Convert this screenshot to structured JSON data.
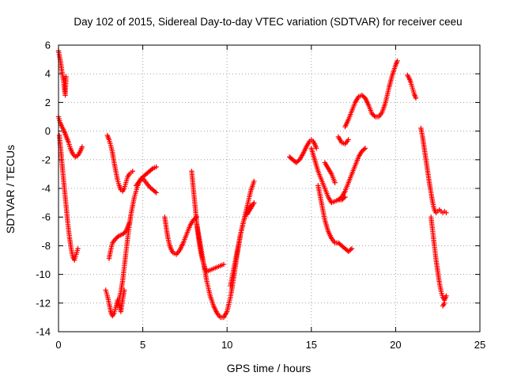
{
  "chart_data": {
    "type": "scatter",
    "title": "Day 102 of 2015, Sidereal Day-to-day VTEC variation (SDTVAR) for receiver ceeu",
    "xlabel": "GPS time / hours",
    "ylabel": "SDTVAR / TECUs",
    "xlim": [
      0,
      25
    ],
    "ylim": [
      -14,
      6
    ],
    "x_ticks": [
      0,
      5,
      10,
      15,
      20,
      25
    ],
    "y_ticks": [
      -14,
      -12,
      -10,
      -8,
      -6,
      -4,
      -2,
      0,
      2,
      4,
      6
    ],
    "grid": true,
    "legend": "none",
    "marker": "plus",
    "color": "#ff0000",
    "series": [
      {
        "x": [
          0.0,
          0.1,
          0.2,
          0.3,
          0.35,
          0.4,
          0.45
        ],
        "y": [
          5.6,
          5.0,
          4.2,
          3.5,
          2.9,
          2.5,
          3.8
        ]
      },
      {
        "x": [
          0.0,
          0.1,
          0.2,
          0.3,
          0.4,
          0.5,
          0.6,
          0.7,
          0.85,
          1.0,
          1.15,
          1.3,
          1.4
        ],
        "y": [
          1.0,
          0.6,
          0.3,
          0.1,
          -0.2,
          -0.5,
          -0.8,
          -1.2,
          -1.6,
          -1.8,
          -1.7,
          -1.4,
          -1.1
        ]
      },
      {
        "x": [
          0.05,
          0.15,
          0.25,
          0.35,
          0.45,
          0.55,
          0.65,
          0.75,
          0.85,
          0.95,
          1.05,
          1.15
        ],
        "y": [
          -0.3,
          -1.5,
          -2.8,
          -4.0,
          -5.2,
          -6.4,
          -7.4,
          -8.2,
          -8.8,
          -9.0,
          -8.6,
          -8.2
        ]
      },
      {
        "x": [
          2.9,
          3.0,
          3.1,
          3.2,
          3.3,
          3.4,
          3.5,
          3.6,
          3.7,
          3.8,
          3.9,
          4.0,
          4.1,
          4.2,
          4.3,
          4.4
        ],
        "y": [
          -0.3,
          -0.6,
          -1.0,
          -1.5,
          -2.2,
          -2.8,
          -3.4,
          -3.8,
          -4.1,
          -4.2,
          -4.0,
          -3.6,
          -3.2,
          -3.0,
          -2.9,
          -2.8
        ]
      },
      {
        "x": [
          2.8,
          2.9,
          3.0,
          3.1,
          3.2,
          3.3,
          3.4,
          3.5,
          3.6,
          3.7,
          3.8,
          3.9
        ],
        "y": [
          -11.1,
          -11.5,
          -12.0,
          -12.6,
          -12.9,
          -12.7,
          -12.3,
          -11.8,
          -12.2,
          -12.6,
          -11.8,
          -11.1
        ]
      },
      {
        "x": [
          3.0,
          3.1,
          3.2,
          3.4,
          3.6,
          3.8,
          4.0,
          4.1,
          4.2
        ],
        "y": [
          -8.9,
          -8.3,
          -7.8,
          -7.5,
          -7.3,
          -7.2,
          -7.0,
          -6.7,
          -6.4
        ]
      },
      {
        "x": [
          3.5,
          3.6,
          3.7,
          3.8,
          3.9,
          4.0,
          4.1,
          4.2,
          4.3,
          4.4,
          4.5,
          4.6,
          4.7,
          4.8,
          4.9,
          5.0,
          5.2,
          5.4,
          5.6,
          5.8
        ],
        "y": [
          -12.2,
          -11.7,
          -11.2,
          -10.5,
          -9.5,
          -8.5,
          -7.5,
          -6.6,
          -5.8,
          -5.2,
          -4.6,
          -4.2,
          -3.8,
          -3.5,
          -3.3,
          -3.2,
          -3.0,
          -2.8,
          -2.6,
          -2.5
        ]
      },
      {
        "x": [
          4.6,
          4.8,
          5.0,
          5.2,
          5.4,
          5.6,
          5.8
        ],
        "y": [
          -3.8,
          -3.5,
          -3.3,
          -3.6,
          -3.9,
          -4.1,
          -4.3
        ]
      },
      {
        "x": [
          6.3,
          6.4,
          6.5,
          6.6,
          6.7,
          6.8,
          7.0,
          7.2,
          7.4,
          7.6,
          7.8,
          8.0,
          8.2
        ],
        "y": [
          -6.0,
          -6.8,
          -7.5,
          -8.0,
          -8.3,
          -8.5,
          -8.6,
          -8.3,
          -7.8,
          -7.2,
          -6.6,
          -6.2,
          -6.0
        ]
      },
      {
        "x": [
          7.9,
          8.0,
          8.1,
          8.2,
          8.3,
          8.4,
          8.5,
          8.6,
          8.7,
          8.8,
          9.0,
          9.2,
          9.4,
          9.6,
          9.8
        ],
        "y": [
          -2.8,
          -4.0,
          -5.2,
          -6.4,
          -7.4,
          -8.2,
          -8.8,
          -9.2,
          -9.6,
          -9.8,
          -9.7,
          -9.6,
          -9.5,
          -9.4,
          -9.3
        ]
      },
      {
        "x": [
          8.2,
          8.4,
          8.6,
          8.8,
          9.0,
          9.2,
          9.4,
          9.6,
          9.8,
          10.0,
          10.2,
          10.4,
          10.6,
          10.8,
          11.0,
          11.2,
          11.4
        ],
        "y": [
          -6.5,
          -7.8,
          -9.2,
          -10.5,
          -11.5,
          -12.2,
          -12.7,
          -13.0,
          -13.0,
          -12.6,
          -11.6,
          -10.2,
          -8.6,
          -7.2,
          -6.2,
          -5.6,
          -5.2
        ]
      },
      {
        "x": [
          10.2,
          10.4,
          10.6,
          10.8,
          11.0,
          11.2,
          11.4,
          11.6
        ],
        "y": [
          -10.8,
          -9.6,
          -8.4,
          -7.2,
          -6.2,
          -5.2,
          -4.2,
          -3.5
        ]
      },
      {
        "x": [
          11.2,
          11.4,
          11.6
        ],
        "y": [
          -5.8,
          -5.4,
          -5.0
        ]
      },
      {
        "x": [
          13.7,
          13.9,
          14.1,
          14.3,
          14.5,
          14.7,
          14.9,
          15.0,
          15.1,
          15.2,
          15.3
        ],
        "y": [
          -1.8,
          -2.0,
          -2.2,
          -2.0,
          -1.6,
          -1.1,
          -0.7,
          -0.6,
          -0.7,
          -0.9,
          -1.2
        ]
      },
      {
        "x": [
          15.0,
          15.2,
          15.4,
          15.6,
          15.8,
          16.0,
          16.2,
          16.4,
          16.6,
          16.8,
          17.0
        ],
        "y": [
          -1.2,
          -2.0,
          -2.8,
          -3.4,
          -4.0,
          -4.6,
          -5.0,
          -4.9,
          -4.8,
          -4.8,
          -4.6
        ]
      },
      {
        "x": [
          15.4,
          15.6,
          15.8,
          16.0,
          16.2,
          16.4,
          16.6,
          16.8,
          17.0,
          17.2,
          17.4
        ],
        "y": [
          -3.8,
          -5.0,
          -6.2,
          -7.0,
          -7.5,
          -7.8,
          -7.8,
          -8.0,
          -8.2,
          -8.4,
          -8.2
        ]
      },
      {
        "x": [
          15.8,
          16.0,
          16.2,
          16.4
        ],
        "y": [
          -2.2,
          -2.6,
          -3.0,
          -3.6
        ]
      },
      {
        "x": [
          16.6,
          16.8,
          17.0,
          17.2,
          17.4,
          17.6,
          17.8,
          18.0,
          18.2
        ],
        "y": [
          -4.8,
          -4.6,
          -4.2,
          -3.6,
          -3.0,
          -2.4,
          -1.8,
          -1.4,
          -1.2
        ]
      },
      {
        "x": [
          16.6,
          16.8,
          17.0,
          17.2
        ],
        "y": [
          -0.4,
          -0.8,
          -0.9,
          -0.6
        ]
      },
      {
        "x": [
          17.0,
          17.2,
          17.4,
          17.6,
          17.8,
          18.0,
          18.2,
          18.4,
          18.6,
          18.8,
          19.0,
          19.2,
          19.4,
          19.6,
          19.8,
          20.0,
          20.1
        ],
        "y": [
          0.3,
          0.8,
          1.4,
          2.0,
          2.4,
          2.5,
          2.3,
          1.8,
          1.2,
          1.0,
          1.0,
          1.3,
          2.0,
          3.0,
          3.9,
          4.6,
          4.9
        ]
      },
      {
        "x": [
          20.7,
          20.8,
          20.9,
          21.0,
          21.1,
          21.2
        ],
        "y": [
          3.9,
          3.7,
          3.4,
          3.0,
          2.6,
          2.3
        ]
      },
      {
        "x": [
          21.5,
          21.6,
          21.7,
          21.8,
          21.9,
          22.0,
          22.1,
          22.2,
          22.3,
          22.4,
          22.5,
          22.6
        ],
        "y": [
          0.2,
          -0.4,
          -1.2,
          -2.0,
          -2.8,
          -3.6,
          -4.3,
          -5.0,
          -5.5,
          -5.7,
          -5.6,
          -5.5
        ]
      },
      {
        "x": [
          22.1,
          22.2,
          22.3,
          22.4,
          22.5,
          22.6,
          22.7,
          22.8,
          22.9,
          23.0
        ],
        "y": [
          -6.0,
          -7.0,
          -8.0,
          -9.0,
          -9.8,
          -10.6,
          -11.2,
          -11.6,
          -11.8,
          -11.5
        ]
      },
      {
        "x": [
          22.6,
          22.7,
          22.8,
          22.9,
          23.0
        ],
        "y": [
          -5.5,
          -5.6,
          -5.7,
          -5.6,
          -5.7
        ]
      },
      {
        "x": [
          22.8,
          22.9
        ],
        "y": [
          -12.2,
          -12.0
        ]
      }
    ]
  }
}
